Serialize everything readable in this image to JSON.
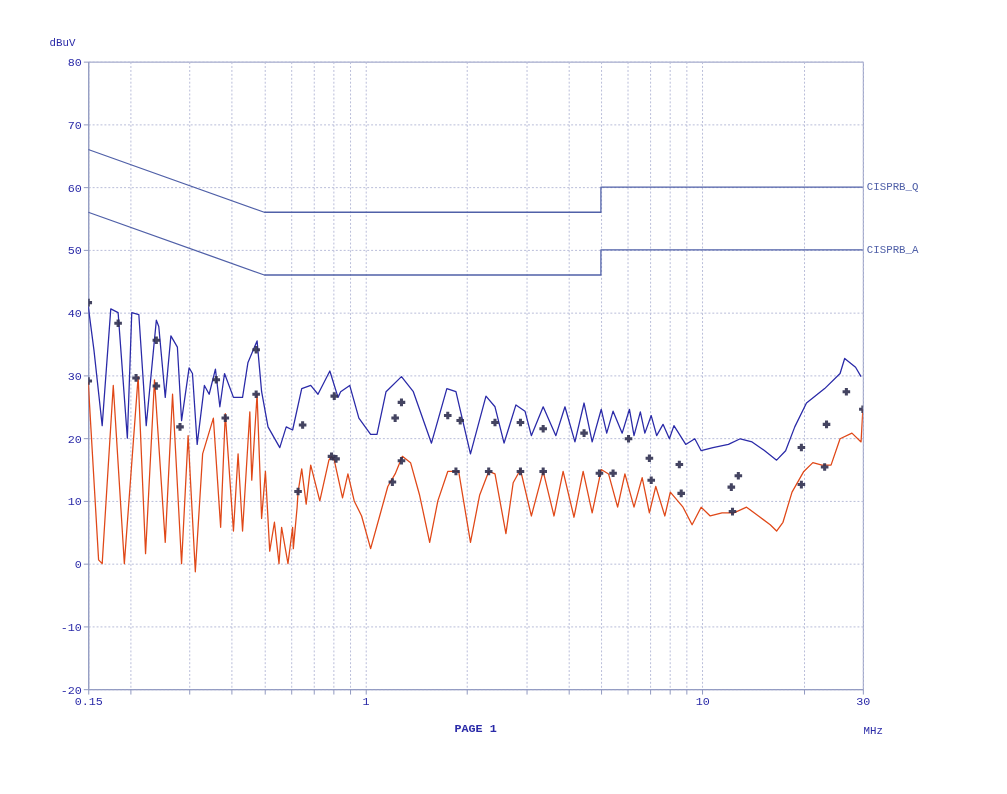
{
  "chart_data": {
    "type": "line",
    "xlabel": "MHz",
    "ylabel": "dBuV",
    "annotations": [
      "PAGE 1"
    ],
    "log": "x",
    "grid": true,
    "line_style": "solid",
    "xlim": [
      0.15,
      30
    ],
    "ylim": [
      -20,
      80
    ],
    "xticks": [
      0.15,
      {
        "value": 0.2,
        "label": null
      },
      {
        "value": 0.3,
        "label": null
      },
      {
        "value": 0.4,
        "label": null
      },
      {
        "value": 0.5,
        "label": null
      },
      {
        "value": 0.6,
        "label": null
      },
      {
        "value": 0.7,
        "label": null
      },
      {
        "value": 0.8,
        "label": null
      },
      {
        "value": 0.9,
        "label": null
      },
      1,
      {
        "value": 2,
        "label": null
      },
      {
        "value": 3,
        "label": null
      },
      {
        "value": 4,
        "label": null
      },
      {
        "value": 5,
        "label": null
      },
      {
        "value": 6,
        "label": null
      },
      {
        "value": 7,
        "label": null
      },
      {
        "value": 8,
        "label": null
      },
      {
        "value": 9,
        "label": null
      },
      10,
      {
        "value": 20,
        "label": null
      },
      30
    ],
    "yticks": [
      -20,
      -10,
      0,
      10,
      20,
      30,
      40,
      50,
      60,
      70,
      80
    ],
    "series": [
      {
        "name": "CISPRB_Q",
        "color": "#5060a8",
        "x": [
          0.15,
          0.5,
          5,
          5,
          30
        ],
        "values": [
          66,
          56,
          56,
          60,
          60
        ]
      },
      {
        "name": "CISPRB_A",
        "color": "#5060a8",
        "x": [
          0.15,
          0.5,
          5,
          5,
          30
        ],
        "values": [
          56,
          46,
          46,
          50,
          50
        ]
      },
      {
        "color": "#2a2aa8",
        "x": [
          0.15,
          0.156,
          0.165,
          0.175,
          0.184,
          0.196,
          0.202,
          0.212,
          0.223,
          0.239,
          0.243,
          0.254,
          0.264,
          0.276,
          0.284,
          0.299,
          0.306,
          0.316,
          0.332,
          0.343,
          0.358,
          0.369,
          0.381,
          0.405,
          0.431,
          0.447,
          0.476,
          0.491,
          0.513,
          0.556,
          0.581,
          0.607,
          0.646,
          0.687,
          0.722,
          0.783,
          0.828,
          0.843,
          0.897,
          0.955,
          1.035,
          1.081,
          1.15,
          1.278,
          1.386,
          1.569,
          1.743,
          1.855,
          2.049,
          2.278,
          2.423,
          2.578,
          2.796,
          2.975,
          3.107,
          3.369,
          3.674,
          3.91,
          4.186,
          4.456,
          4.71,
          5.012,
          5.203,
          5.434,
          5.783,
          6.078,
          6.27,
          6.548,
          6.754,
          7.054,
          7.322,
          7.647,
          7.988,
          8.24,
          8.932,
          9.504,
          9.926,
          10.76,
          11.96,
          12.97,
          14.06,
          15.33,
          16.63,
          17.69,
          18.83,
          20.4,
          23.1,
          25.67,
          26.49,
          28.54,
          29.63
        ],
        "values": [
          41,
          34,
          22,
          40.6,
          40,
          20,
          40,
          39.7,
          22,
          38.8,
          37.8,
          26.5,
          36.3,
          34.5,
          22.8,
          31.2,
          30.3,
          19,
          28.4,
          27,
          31,
          25,
          30.3,
          26.5,
          26.5,
          32,
          35.5,
          27.4,
          21.8,
          18.5,
          21.8,
          21.3,
          27.9,
          28.4,
          27,
          30.7,
          26.5,
          27.4,
          28.4,
          23.2,
          20.6,
          20.6,
          27.4,
          29.8,
          27.4,
          19.2,
          27.9,
          27.4,
          17.5,
          26.7,
          25,
          19.2,
          25.3,
          24.3,
          20.4,
          25,
          20.4,
          25,
          19.4,
          25.6,
          19.4,
          24.6,
          20.8,
          24.3,
          20.8,
          24.6,
          20.4,
          24.2,
          20.8,
          23.6,
          20.4,
          22.2,
          19.9,
          22,
          19,
          19.9,
          18,
          18.5,
          19,
          19.9,
          19.4,
          18,
          16.5,
          18,
          21.8,
          25.6,
          27.9,
          30.3,
          32.7,
          31.3,
          29.8
        ]
      },
      {
        "color": "#e04818",
        "x": [
          0.15,
          0.161,
          0.165,
          0.178,
          0.192,
          0.211,
          0.222,
          0.236,
          0.254,
          0.267,
          0.284,
          0.297,
          0.312,
          0.328,
          0.353,
          0.371,
          0.383,
          0.405,
          0.418,
          0.431,
          0.453,
          0.459,
          0.476,
          0.491,
          0.504,
          0.519,
          0.536,
          0.553,
          0.563,
          0.588,
          0.607,
          0.61,
          0.626,
          0.63,
          0.646,
          0.666,
          0.687,
          0.731,
          0.778,
          0.792,
          0.807,
          0.854,
          0.886,
          0.925,
          0.973,
          1.035,
          1.101,
          1.164,
          1.224,
          1.286,
          1.36,
          1.447,
          1.55,
          1.639,
          1.754,
          1.89,
          2.049,
          2.181,
          2.321,
          2.423,
          2.611,
          2.744,
          2.884,
          3.107,
          3.369,
          3.628,
          3.861,
          4.16,
          4.428,
          4.71,
          5.012,
          5.268,
          5.606,
          5.892,
          6.27,
          6.63,
          6.966,
          7.277,
          7.743,
          8.038,
          8.767,
          9.329,
          9.926,
          10.56,
          11.45,
          12.41,
          13.54,
          14.69,
          15.92,
          16.63,
          17.37,
          18.48,
          20.03,
          21.31,
          22.68,
          24.13,
          25.67,
          27.84,
          29.63,
          30
        ],
        "values": [
          28.9,
          0.6,
          0,
          28.4,
          0,
          29.8,
          1.6,
          29.3,
          3.4,
          27,
          0,
          20.4,
          -1.3,
          17.5,
          23.2,
          5.8,
          23.9,
          5.2,
          17.5,
          5.2,
          24.2,
          13.3,
          27,
          7.2,
          14.7,
          2,
          6.6,
          0,
          5.8,
          0,
          5.8,
          2.4,
          9,
          11.4,
          15.1,
          9.5,
          15.7,
          10,
          16.5,
          17.1,
          16.5,
          10.5,
          14.3,
          10,
          7.6,
          2.4,
          7.6,
          12.3,
          14.3,
          17.1,
          16.1,
          10.9,
          3.4,
          10,
          14.7,
          14.7,
          3.4,
          10.9,
          14.7,
          14.3,
          4.8,
          12.9,
          15,
          7.6,
          14.7,
          7.6,
          14.7,
          7.4,
          14.7,
          8.1,
          15,
          14.3,
          9,
          14.3,
          9,
          13.7,
          8.1,
          12.3,
          7.6,
          11.4,
          9,
          6.2,
          9,
          7.6,
          8.1,
          8.1,
          9,
          7.6,
          6.2,
          5.2,
          6.6,
          11.4,
          14.7,
          16.1,
          15.7,
          15.7,
          19.9,
          20.8,
          19.4,
          24.6
        ]
      },
      {
        "type": "scatter",
        "marker": "cross",
        "color": "#303050",
        "x": [
          0.15,
          0.184,
          0.239,
          0.281,
          0.36,
          0.473,
          0.65,
          0.807,
          1.224,
          1.278,
          1.754,
          1.91,
          2.423,
          2.884,
          3.369,
          4.456,
          6.04,
          6.966,
          8.55,
          12.2,
          12.8,
          19.7,
          23.4,
          26.8
        ],
        "values": [
          41.6,
          38.3,
          35.6,
          21.8,
          29.3,
          34.1,
          22.1,
          26.7,
          23.2,
          25.7,
          23.6,
          22.8,
          22.5,
          22.5,
          21.5,
          20.8,
          19.9,
          16.8,
          15.8,
          12.2,
          14,
          18.5,
          22.2,
          27.4
        ]
      },
      {
        "type": "scatter",
        "marker": "cross",
        "color": "#303050",
        "x": [
          0.15,
          0.208,
          0.239,
          0.383,
          0.473,
          0.63,
          0.792,
          0.817,
          1.201,
          1.278,
          1.855,
          2.321,
          2.884,
          3.369,
          4.95,
          5.434,
          7.054,
          8.66,
          12.3,
          19.7,
          23.1,
          30
        ],
        "values": [
          29.1,
          29.6,
          28.3,
          23.2,
          27,
          11.5,
          17.1,
          16.7,
          13,
          16.4,
          14.7,
          14.7,
          14.7,
          14.7,
          14.4,
          14.4,
          13.3,
          11.2,
          8.3,
          12.6,
          15.4,
          24.6
        ]
      }
    ]
  }
}
